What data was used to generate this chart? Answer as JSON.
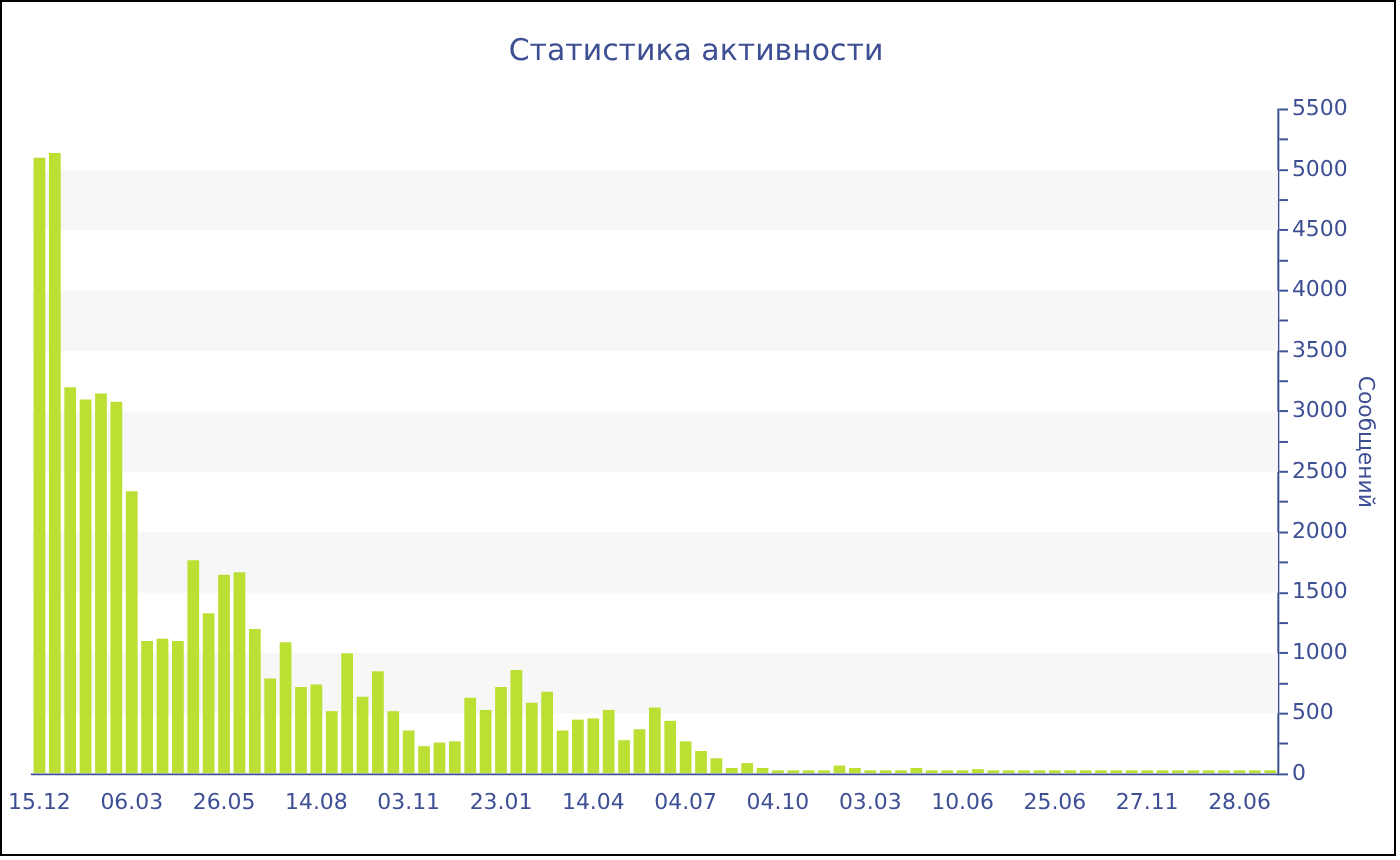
{
  "chart_data": {
    "type": "bar",
    "title": "Статистика активности",
    "ylabel": "Сообщений",
    "categories": [
      "15.12",
      null,
      null,
      null,
      null,
      null,
      "06.03",
      null,
      null,
      null,
      null,
      null,
      "26.05",
      null,
      null,
      null,
      null,
      null,
      "14.08",
      null,
      null,
      null,
      null,
      null,
      "03.11",
      null,
      null,
      null,
      null,
      null,
      "23.01",
      null,
      null,
      null,
      null,
      null,
      "14.04",
      null,
      null,
      null,
      null,
      null,
      "04.07",
      null,
      null,
      null,
      null,
      null,
      "04.10",
      null,
      null,
      null,
      null,
      null,
      "03.03",
      null,
      null,
      null,
      null,
      null,
      "10.06",
      null,
      null,
      null,
      null,
      null,
      "25.06",
      null,
      null,
      null,
      null,
      null,
      "27.11",
      null,
      null,
      null,
      null,
      null,
      "28.06",
      null,
      null
    ],
    "values": [
      5100,
      5140,
      3200,
      3100,
      3150,
      3080,
      2340,
      1100,
      1120,
      1100,
      1770,
      1330,
      1650,
      1670,
      1200,
      790,
      1090,
      720,
      740,
      520,
      1000,
      640,
      850,
      520,
      360,
      230,
      260,
      270,
      630,
      530,
      720,
      860,
      590,
      680,
      360,
      450,
      460,
      530,
      280,
      370,
      550,
      440,
      270,
      190,
      130,
      50,
      90,
      50,
      30,
      30,
      30,
      30,
      70,
      50,
      30,
      30,
      30,
      50,
      30,
      30,
      30,
      40,
      30,
      30,
      30,
      30,
      30,
      30,
      30,
      30,
      30,
      30,
      30,
      30,
      30,
      30,
      30,
      30,
      30,
      30,
      30
    ],
    "color": "#bbe033",
    "ylim": [
      0,
      5500
    ],
    "yticks": [
      0,
      {
        "value": 250,
        "label": null
      },
      500,
      {
        "value": 750,
        "label": null
      },
      1000,
      {
        "value": 1250,
        "label": null
      },
      1500,
      {
        "value": 1750,
        "label": null
      },
      2000,
      {
        "value": 2250,
        "label": null
      },
      2500,
      {
        "value": 2750,
        "label": null
      },
      3000,
      {
        "value": 3250,
        "label": null
      },
      3500,
      {
        "value": 3750,
        "label": null
      },
      4000,
      {
        "value": 4250,
        "label": null
      },
      4500,
      {
        "value": 4750,
        "label": null
      },
      5000,
      {
        "value": 5250,
        "label": null
      },
      5500
    ],
    "bands": [
      {
        "axis": "y",
        "from": 500,
        "to": 1000,
        "color": "#f7f7f7"
      },
      {
        "axis": "y",
        "from": 1500,
        "to": 2000,
        "color": "#f7f7f7"
      },
      {
        "axis": "y",
        "from": 2500,
        "to": 3000,
        "color": "#f7f7f7"
      },
      {
        "axis": "y",
        "from": 3500,
        "to": 4000,
        "color": "#f7f7f7"
      },
      {
        "axis": "y",
        "from": 4500,
        "to": 5000,
        "color": "#f7f7f7"
      }
    ],
    "grid": false,
    "legend": false
  }
}
